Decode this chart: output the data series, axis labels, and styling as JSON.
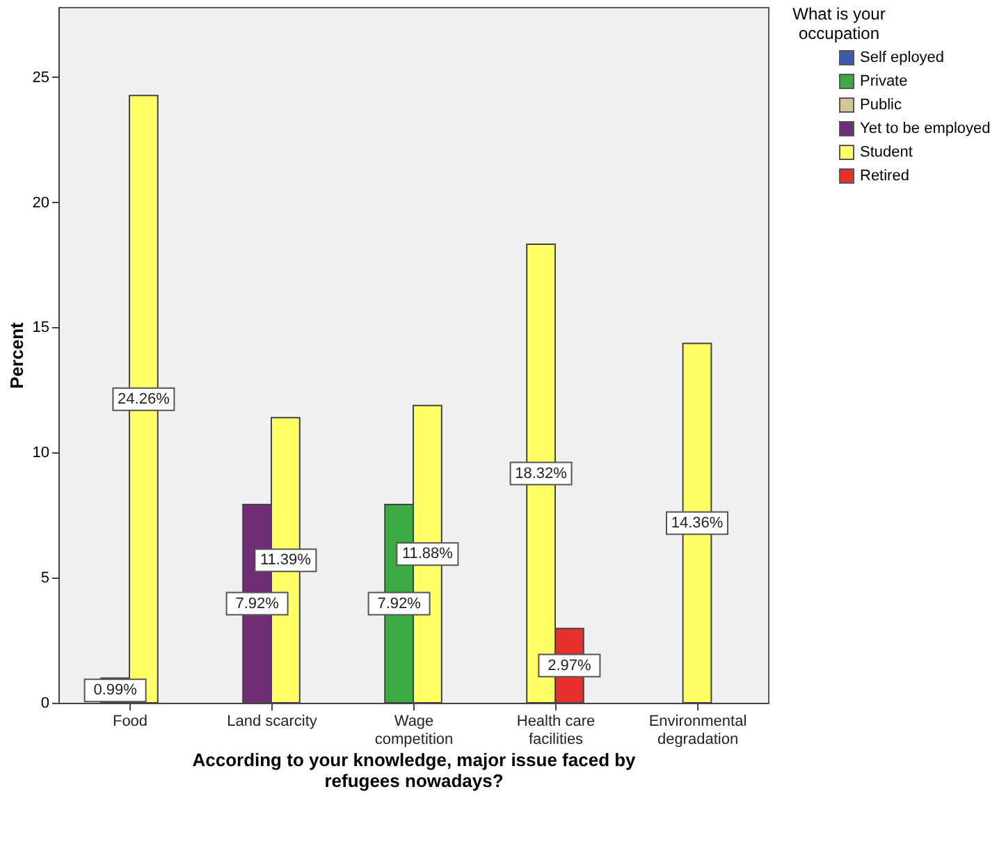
{
  "chart_data": {
    "type": "bar",
    "xlabel": "According to your knowledge, major issue faced by refugees nowadays?",
    "ylabel": "Percent",
    "legend_title": "What is your occupation",
    "categories": [
      "Food",
      "Land scarcity",
      "Wage competition",
      "Health care facilities",
      "Environmental degradation"
    ],
    "series": [
      {
        "name": "Self eployed",
        "color": "#3e58ac",
        "values": [
          null,
          null,
          null,
          null,
          null
        ]
      },
      {
        "name": "Private",
        "color": "#3caa44",
        "values": [
          null,
          null,
          7.92,
          null,
          null
        ],
        "value_labels": [
          null,
          null,
          "7.92%",
          null,
          null
        ]
      },
      {
        "name": "Public",
        "color": "#d2c698",
        "values": [
          null,
          null,
          null,
          null,
          null
        ]
      },
      {
        "name": "Yet to be employed",
        "color": "#702d78",
        "values": [
          0.99,
          7.92,
          null,
          null,
          null
        ],
        "value_labels": [
          "0.99%",
          "7.92%",
          null,
          null,
          null
        ]
      },
      {
        "name": "Student",
        "color": "#ffff66",
        "values": [
          24.26,
          11.39,
          11.88,
          18.32,
          14.36
        ],
        "value_labels": [
          "24.26%",
          "11.39%",
          "11.88%",
          "18.32%",
          "14.36%"
        ]
      },
      {
        "name": "Retired",
        "color": "#e8302c",
        "values": [
          null,
          null,
          null,
          2.97,
          null
        ],
        "value_labels": [
          null,
          null,
          null,
          "2.97%",
          null
        ]
      }
    ],
    "ylim": [
      0,
      27.8
    ],
    "yticks": [
      0,
      5,
      10,
      15,
      20,
      25
    ],
    "grid": false,
    "legend": "right"
  }
}
